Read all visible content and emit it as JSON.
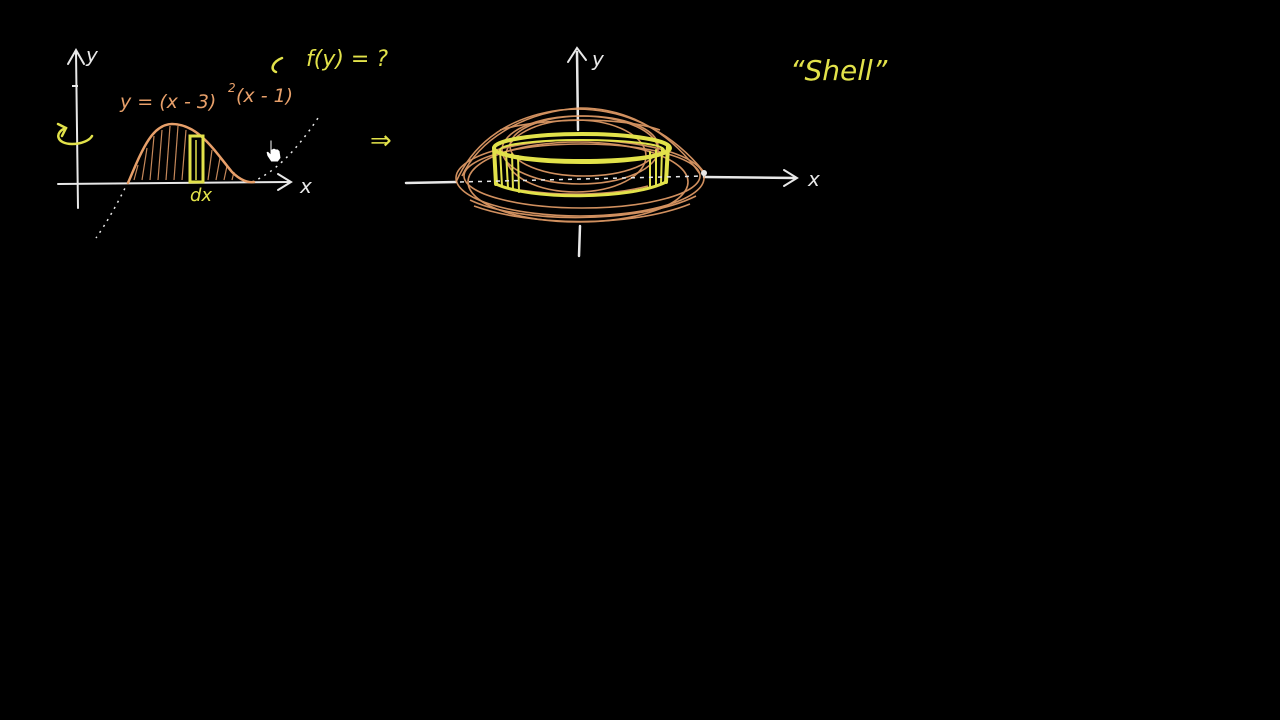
{
  "colors": {
    "background": "#000000",
    "chalk": "#e8e8e8",
    "orange": "#e8a06a",
    "yellow": "#e2e24a"
  },
  "left_graph": {
    "y_label": "y",
    "x_label": "x",
    "function_label": "y = (x - 3)",
    "exponent": "2",
    "function_label_tail": "(x - 1)",
    "inverse_question": "f(y) = ?",
    "dx_label": "dx",
    "rotation_arrow_icon": "rotation-arrow-icon"
  },
  "implies_arrow": "⇒",
  "right_graph": {
    "y_label": "y",
    "x_label": "x"
  },
  "shell_label": "“Shell”",
  "cursor_icon": "hand-pointer-icon"
}
